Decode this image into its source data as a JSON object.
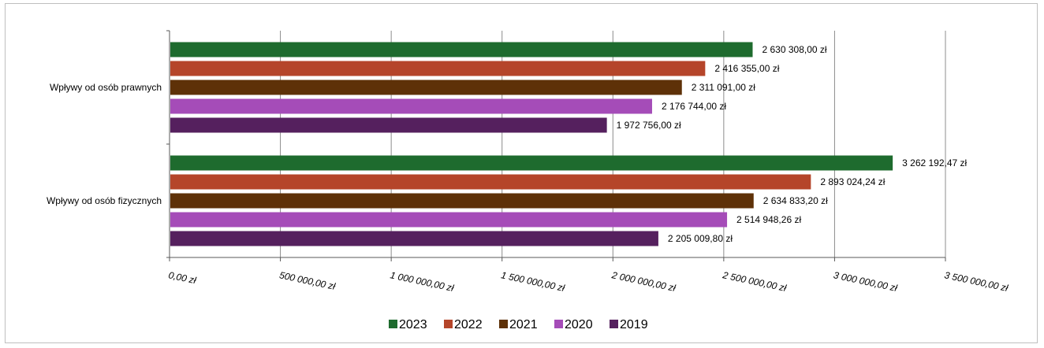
{
  "chart_data": {
    "type": "bar",
    "orientation": "horizontal",
    "categories": [
      "Wpływy od osób prawnych",
      "Wpływy od osób fizycznych"
    ],
    "series": [
      {
        "name": "2023",
        "color": "#1e6b2e",
        "values": [
          2630308.0,
          3262192.47
        ],
        "labels": [
          "2 630 308,00 zł",
          "3 262 192,47 zł"
        ]
      },
      {
        "name": "2022",
        "color": "#b5452a",
        "values": [
          2416355.0,
          2893024.24
        ],
        "labels": [
          "2 416 355,00 zł",
          "2 893 024,24 zł"
        ]
      },
      {
        "name": "2021",
        "color": "#5e3108",
        "values": [
          2311091.0,
          2634833.2
        ],
        "labels": [
          "2 311 091,00 zł",
          "2 634 833,20 zł"
        ]
      },
      {
        "name": "2020",
        "color": "#a54cb8",
        "values": [
          2176744.0,
          2514948.26
        ],
        "labels": [
          "2 176 744,00 zł",
          "2 514 948,26 zł"
        ]
      },
      {
        "name": "2019",
        "color": "#55205e",
        "values": [
          1972756.0,
          2205009.8
        ],
        "labels": [
          "1 972 756,00 zł",
          "2 205 009,80 zł"
        ]
      }
    ],
    "xlim": [
      0,
      3500000
    ],
    "ticks": [
      0,
      500000,
      1000000,
      1500000,
      2000000,
      2500000,
      3000000,
      3500000
    ],
    "tick_labels": [
      "0,00 zł",
      "500 000,00 zł",
      "1 000 000,00 zł",
      "1 500 000,00 zł",
      "2 000 000,00 zł",
      "2 500 000,00 zł",
      "3 000 000,00 zł",
      "3 500 000,00 zł"
    ],
    "grid": true,
    "legend_position": "bottom",
    "title": "",
    "xlabel": "",
    "ylabel": ""
  }
}
